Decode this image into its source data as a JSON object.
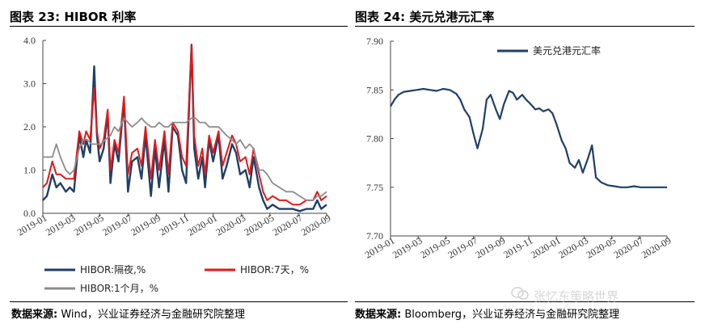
{
  "left": {
    "title": "图表 23:  HIBOR 利率",
    "source_label": "数据来源:",
    "source_text": "Wind，兴业证券经济与金融研究院整理",
    "chart_data": {
      "type": "line",
      "title": "HIBOR 利率",
      "ylim": [
        0,
        4
      ],
      "y_ticks": [
        "0.0",
        "1.0",
        "2.0",
        "3.0",
        "4.0"
      ],
      "x_ticks": [
        "2019-01",
        "2019-03",
        "2019-05",
        "2019-07",
        "2019-09",
        "2019-11",
        "2020-01",
        "2020-03",
        "2020-05",
        "2020-07",
        "2020-09"
      ],
      "xlim": [
        0,
        21
      ],
      "series": [
        {
          "name": "HIBOR:隔夜,%",
          "color": "#1f3f66",
          "x": [
            0,
            0.3,
            0.7,
            1,
            1.3,
            1.7,
            2,
            2.3,
            2.7,
            3,
            3.2,
            3.5,
            3.8,
            4,
            4.2,
            4.5,
            4.8,
            5,
            5.3,
            5.6,
            6,
            6.3,
            6.6,
            7,
            7.3,
            7.6,
            8,
            8.3,
            8.6,
            9,
            9.3,
            9.6,
            10,
            10.3,
            10.6,
            11,
            11.2,
            11.5,
            11.8,
            12,
            12.3,
            12.6,
            13,
            13.3,
            13.6,
            14,
            14.3,
            14.6,
            15,
            15.3,
            15.6,
            16,
            16.3,
            16.6,
            17,
            17.5,
            18,
            18.5,
            19,
            19.5,
            20,
            20.3,
            20.6,
            21
          ],
          "y": [
            0.3,
            0.4,
            0.9,
            0.6,
            0.7,
            0.5,
            0.6,
            0.5,
            1.8,
            1.3,
            1.7,
            1.4,
            3.4,
            1.8,
            1.2,
            1.5,
            2.3,
            0.7,
            1.6,
            1.2,
            2.6,
            0.5,
            1.2,
            1.3,
            0.8,
            1.8,
            0.4,
            1.5,
            0.6,
            1.7,
            0.5,
            2.0,
            1.8,
            1.0,
            0.7,
            3.9,
            1.5,
            0.8,
            1.3,
            0.6,
            1.7,
            1.2,
            1.8,
            0.8,
            1.1,
            1.6,
            1.4,
            0.9,
            1.0,
            0.6,
            1.3,
            0.6,
            0.3,
            0.1,
            0.2,
            0.1,
            0.1,
            0.1,
            0.05,
            0.1,
            0.1,
            0.3,
            0.1,
            0.2
          ]
        },
        {
          "name": "HIBOR:7天，%",
          "color": "#e01a1a",
          "x": [
            0,
            0.3,
            0.7,
            1,
            1.3,
            1.7,
            2,
            2.3,
            2.7,
            3,
            3.2,
            3.5,
            3.8,
            4,
            4.2,
            4.5,
            4.8,
            5,
            5.3,
            5.6,
            6,
            6.3,
            6.6,
            7,
            7.3,
            7.6,
            8,
            8.3,
            8.6,
            9,
            9.3,
            9.6,
            10,
            10.3,
            10.6,
            11,
            11.2,
            11.5,
            11.8,
            12,
            12.3,
            12.6,
            13,
            13.3,
            13.6,
            14,
            14.3,
            14.6,
            15,
            15.3,
            15.6,
            16,
            16.3,
            16.6,
            17,
            17.5,
            18,
            18.5,
            19,
            19.5,
            20,
            20.3,
            20.6,
            21
          ],
          "y": [
            0.6,
            0.7,
            1.2,
            0.9,
            0.9,
            0.8,
            0.8,
            0.8,
            1.9,
            1.6,
            1.9,
            1.7,
            2.9,
            1.9,
            1.5,
            1.7,
            2.4,
            1.0,
            1.7,
            1.4,
            2.7,
            0.9,
            1.4,
            1.5,
            1.1,
            2.0,
            0.8,
            1.7,
            1.0,
            1.9,
            0.9,
            2.1,
            1.9,
            1.3,
            1.1,
            3.9,
            1.8,
            1.1,
            1.5,
            0.9,
            1.8,
            1.4,
            1.9,
            1.1,
            1.4,
            1.8,
            1.6,
            1.2,
            1.3,
            0.9,
            1.5,
            0.9,
            0.5,
            0.3,
            0.4,
            0.3,
            0.3,
            0.2,
            0.2,
            0.3,
            0.3,
            0.5,
            0.3,
            0.4
          ]
        },
        {
          "name": "HIBOR:1个月, %",
          "color": "#8c8c8c",
          "x": [
            0,
            0.3,
            0.7,
            1,
            1.3,
            1.7,
            2,
            2.3,
            2.7,
            3,
            3.3,
            3.6,
            4,
            4.3,
            4.6,
            5,
            5.3,
            5.6,
            6,
            6.3,
            6.6,
            7,
            7.3,
            7.6,
            8,
            8.3,
            8.6,
            9,
            9.3,
            9.6,
            10,
            10.3,
            10.6,
            11,
            11.3,
            11.6,
            12,
            12.3,
            12.6,
            13,
            13.3,
            13.6,
            14,
            14.3,
            14.6,
            15,
            15.3,
            15.6,
            16,
            16.3,
            16.6,
            17,
            17.5,
            18,
            18.5,
            19,
            19.5,
            20,
            20.3,
            20.6,
            21
          ],
          "y": [
            1.3,
            1.3,
            1.3,
            1.6,
            1.3,
            1.0,
            0.9,
            1.0,
            1.5,
            1.7,
            1.7,
            1.6,
            1.6,
            1.6,
            1.7,
            1.8,
            2.0,
            1.9,
            2.2,
            2.1,
            2.0,
            2.1,
            2.2,
            2.1,
            2.0,
            2.0,
            2.1,
            2.0,
            2.0,
            2.1,
            2.1,
            2.1,
            2.1,
            2.2,
            2.2,
            2.1,
            2.1,
            2.0,
            2.0,
            2.0,
            1.9,
            1.8,
            1.7,
            1.6,
            1.7,
            1.5,
            1.6,
            1.5,
            1.0,
            1.0,
            0.9,
            0.7,
            0.6,
            0.5,
            0.5,
            0.4,
            0.3,
            0.3,
            0.4,
            0.4,
            0.5
          ]
        }
      ],
      "legend": [
        "HIBOR:隔夜,%",
        "HIBOR:7天，%",
        "HIBOR:1个月，%"
      ]
    }
  },
  "right": {
    "title": "图表 24:  美元兑港元汇率",
    "source_label": "数据来源:",
    "source_text": "Bloomberg，兴业证券经济与金融研究院整理",
    "chart_data": {
      "type": "line",
      "title": "美元兑港元汇率",
      "ylim": [
        7.7,
        7.9
      ],
      "y_ticks": [
        "7.70",
        "7.75",
        "7.80",
        "7.85",
        "7.90"
      ],
      "x_ticks": [
        "2019-01",
        "2019-03",
        "2019-05",
        "2019-07",
        "2019-09",
        "2019-11",
        "2020-01",
        "2020-03",
        "2020-05",
        "2020-07",
        "2020-09"
      ],
      "xlim": [
        0,
        21
      ],
      "series": [
        {
          "name": "美元兑港元汇率",
          "color": "#1f3f66",
          "x": [
            0,
            0.3,
            0.6,
            1,
            1.5,
            2,
            2.5,
            3,
            3.5,
            4,
            4.5,
            5,
            5.3,
            5.6,
            6,
            6.3,
            6.6,
            7,
            7.3,
            7.6,
            8,
            8.3,
            8.6,
            9,
            9.3,
            9.6,
            10,
            10.3,
            10.6,
            11,
            11.3,
            11.6,
            12,
            12.3,
            12.6,
            13,
            13.3,
            13.6,
            14,
            14.3,
            14.6,
            15,
            15.3,
            15.6,
            16,
            16.5,
            17,
            17.5,
            18,
            18.5,
            19,
            19.5,
            20,
            20.5,
            21
          ],
          "y": [
            7.833,
            7.84,
            7.845,
            7.848,
            7.849,
            7.85,
            7.851,
            7.85,
            7.849,
            7.851,
            7.85,
            7.846,
            7.84,
            7.83,
            7.822,
            7.805,
            7.79,
            7.81,
            7.84,
            7.845,
            7.83,
            7.82,
            7.835,
            7.849,
            7.847,
            7.84,
            7.845,
            7.84,
            7.836,
            7.83,
            7.831,
            7.828,
            7.83,
            7.826,
            7.815,
            7.798,
            7.79,
            7.775,
            7.77,
            7.778,
            7.765,
            7.78,
            7.793,
            7.76,
            7.755,
            7.752,
            7.751,
            7.75,
            7.75,
            7.751,
            7.75,
            7.75,
            7.75,
            7.75,
            7.75
          ]
        }
      ],
      "legend": [
        "美元兑港元汇率"
      ]
    }
  },
  "watermark": "张忆东策略世界"
}
